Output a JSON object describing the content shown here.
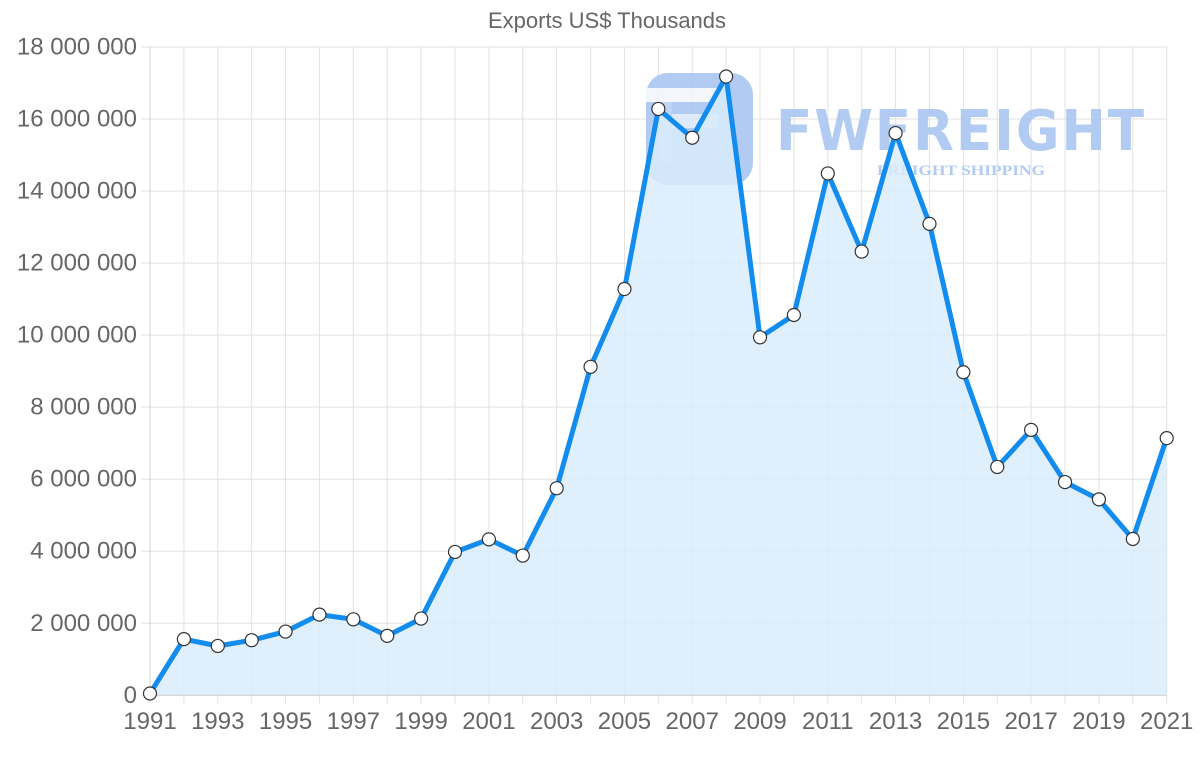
{
  "chart_data": {
    "type": "line",
    "title": "Exports US$ Thousands",
    "xlabel": "",
    "ylabel": "",
    "x": [
      1991,
      1992,
      1993,
      1994,
      1995,
      1996,
      1997,
      1998,
      1999,
      2000,
      2001,
      2002,
      2003,
      2004,
      2005,
      2006,
      2007,
      2008,
      2009,
      2010,
      2011,
      2012,
      2013,
      2014,
      2015,
      2016,
      2017,
      2018,
      2019,
      2020,
      2021
    ],
    "series": [
      {
        "name": "Exports US$ Thousands",
        "values": [
          50000,
          1560000,
          1370000,
          1530000,
          1770000,
          2240000,
          2110000,
          1650000,
          2130000,
          3980000,
          4330000,
          3880000,
          5750000,
          9120000,
          11280000,
          16280000,
          15480000,
          17180000,
          9940000,
          10560000,
          14490000,
          12320000,
          15610000,
          13090000,
          8970000,
          6340000,
          7370000,
          5920000,
          5440000,
          4340000,
          7140000
        ],
        "line_color": "#128cee",
        "fill_color": "#d9ecfb",
        "fill": true,
        "point_style": "circle-white"
      }
    ],
    "ylim": [
      0,
      18000000
    ],
    "yticks": [
      0,
      2000000,
      4000000,
      6000000,
      8000000,
      10000000,
      12000000,
      14000000,
      16000000,
      18000000
    ],
    "ytick_labels": [
      "0",
      "2 000 000",
      "4 000 000",
      "6 000 000",
      "8 000 000",
      "10 000 000",
      "12 000 000",
      "14 000 000",
      "16 000 000",
      "18 000 000"
    ],
    "xtick_labels": [
      "1991",
      "1993",
      "1995",
      "1997",
      "1999",
      "2001",
      "2003",
      "2005",
      "2007",
      "2009",
      "2011",
      "2013",
      "2015",
      "2017",
      "2019",
      "2021"
    ],
    "grid": true,
    "legend": "none"
  },
  "watermark": {
    "brand": "FWFREIGHT",
    "tagline": "FREIGHT SHIPPING",
    "color": "#a9c6f2"
  }
}
